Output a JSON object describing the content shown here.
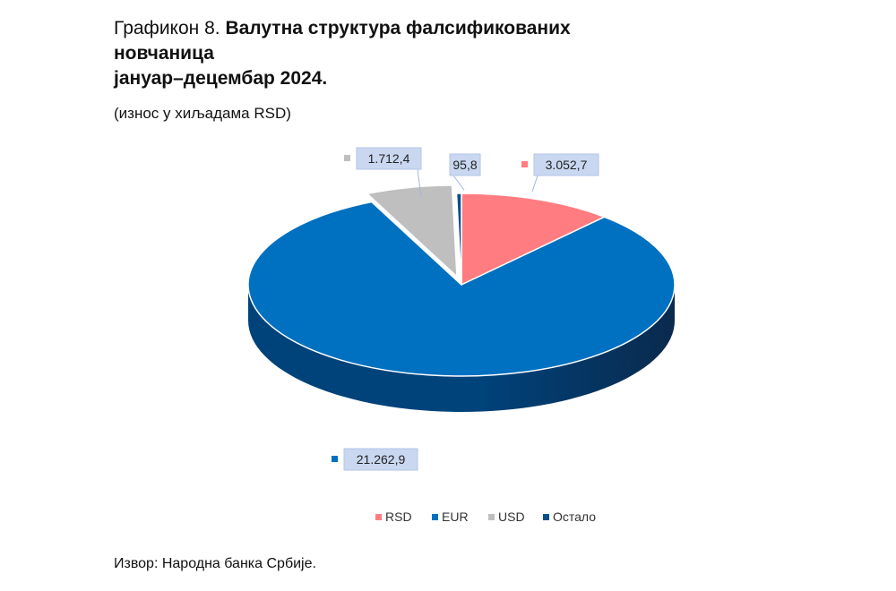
{
  "title": {
    "prefix": "Графикон 8.",
    "line1": "Валутна структура фалсификованих",
    "line2": "новчаница",
    "line3": "јануар–децембар 2024."
  },
  "subtitle": "(износ у хиљадама RSD)",
  "source": "Извор: Народна банка Србије.",
  "chart_data": {
    "type": "pie",
    "style": "3d",
    "categories": [
      "RSD",
      "EUR",
      "USD",
      "Остало"
    ],
    "values": [
      3052.7,
      21262.9,
      1712.4,
      95.8
    ],
    "value_labels": [
      "3.052,7",
      "21.262,9",
      "1.712,4",
      "95,8"
    ],
    "colors": [
      "#FF7C80",
      "#0070C0",
      "#BFBFBF",
      "#0B4F8C"
    ],
    "side_colors": [
      "#C0555A",
      "#00427A",
      "#8A8A8A",
      "#062F55"
    ],
    "legend_position": "bottom"
  }
}
